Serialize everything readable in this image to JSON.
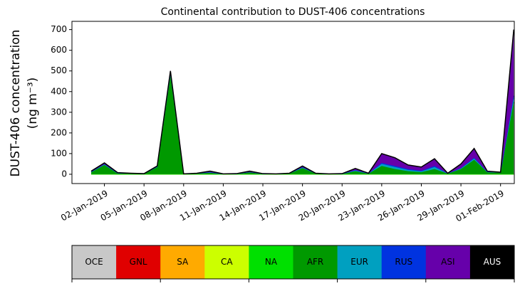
{
  "chart_data": {
    "type": "stacked_area",
    "title": "Continental contribution to DUST-406 concentrations",
    "ylabel": [
      "DUST-406 concentration",
      "(ng m⁻³)"
    ],
    "x": [
      "2019-01-01",
      "2019-01-02",
      "2019-01-03",
      "2019-01-04",
      "2019-01-05",
      "2019-01-06",
      "2019-01-07",
      "2019-01-08",
      "2019-01-09",
      "2019-01-10",
      "2019-01-11",
      "2019-01-12",
      "2019-01-13",
      "2019-01-14",
      "2019-01-15",
      "2019-01-16",
      "2019-01-17",
      "2019-01-18",
      "2019-01-19",
      "2019-01-20",
      "2019-01-21",
      "2019-01-22",
      "2019-01-23",
      "2019-01-24",
      "2019-01-25",
      "2019-01-26",
      "2019-01-27",
      "2019-01-28",
      "2019-01-29",
      "2019-01-30",
      "2019-01-31",
      "2019-02-01",
      "2019-02-02"
    ],
    "xlim": [
      "2018-12-30T13:00:00Z",
      "2019-02-02T01:00:00Z"
    ],
    "xticks": [
      {
        "value": "2019-01-02",
        "label": "02-Jan-2019"
      },
      {
        "value": "2019-01-05",
        "label": "05-Jan-2019"
      },
      {
        "value": "2019-01-08",
        "label": "08-Jan-2019"
      },
      {
        "value": "2019-01-11",
        "label": "11-Jan-2019"
      },
      {
        "value": "2019-01-14",
        "label": "14-Jan-2019"
      },
      {
        "value": "2019-01-17",
        "label": "17-Jan-2019"
      },
      {
        "value": "2019-01-20",
        "label": "20-Jan-2019"
      },
      {
        "value": "2019-01-23",
        "label": "23-Jan-2019"
      },
      {
        "value": "2019-01-26",
        "label": "26-Jan-2019"
      },
      {
        "value": "2019-01-29",
        "label": "29-Jan-2019"
      },
      {
        "value": "2019-02-01",
        "label": "01-Feb-2019"
      }
    ],
    "ylim": [
      -45,
      740
    ],
    "yticks": [
      0,
      100,
      200,
      300,
      400,
      500,
      600,
      700
    ],
    "series": [
      {
        "name": "OCE",
        "color": "#c8c8c8",
        "values": [
          0,
          0,
          0,
          0,
          0,
          0,
          0,
          0,
          0,
          0,
          0,
          0,
          0,
          0,
          0,
          0,
          0,
          0,
          0,
          0,
          0,
          0,
          0,
          0,
          0,
          0,
          0,
          0,
          0,
          0,
          0,
          0,
          0
        ]
      },
      {
        "name": "GNL",
        "color": "#e00000",
        "values": [
          0,
          0,
          0,
          0,
          0,
          0,
          0,
          0,
          0,
          0,
          0,
          0,
          0,
          0,
          0,
          0,
          0,
          0,
          0,
          0,
          0,
          0,
          0,
          0,
          0,
          0,
          0,
          0,
          0,
          0,
          0,
          0,
          0
        ]
      },
      {
        "name": "SA",
        "color": "#ffaa00",
        "values": [
          0,
          0,
          0,
          0,
          0,
          0,
          0,
          0,
          0,
          0,
          0,
          0,
          0,
          0,
          0,
          0,
          0,
          0,
          0,
          0,
          0,
          0,
          0,
          0,
          0,
          0,
          0,
          0,
          0,
          0,
          0,
          0,
          0
        ]
      },
      {
        "name": "CA",
        "color": "#ccff00",
        "values": [
          0,
          0,
          0,
          0,
          0,
          0,
          0,
          0,
          0,
          0,
          0,
          0,
          0,
          0,
          0,
          0,
          0,
          0,
          0,
          0,
          0,
          0,
          0,
          0,
          0,
          0,
          0,
          0,
          0,
          0,
          0,
          0,
          0
        ]
      },
      {
        "name": "NA",
        "color": "#00e000",
        "values": [
          0,
          0,
          0,
          0,
          0,
          0,
          0,
          0,
          0,
          0,
          0,
          0,
          0,
          0,
          0,
          0,
          0,
          0,
          0,
          0,
          0,
          0,
          0,
          0,
          0,
          0,
          0,
          0,
          0,
          0,
          0,
          0,
          0
        ]
      },
      {
        "name": "AFR",
        "color": "#009900",
        "values": [
          10,
          45,
          5,
          4,
          2,
          35,
          480,
          1,
          3,
          8,
          1,
          2,
          10,
          2,
          1,
          3,
          30,
          3,
          1,
          2,
          15,
          3,
          40,
          25,
          15,
          10,
          25,
          3,
          25,
          70,
          10,
          8,
          350
        ]
      },
      {
        "name": "EUR",
        "color": "#00a0c0",
        "values": [
          1,
          2,
          0,
          0,
          0,
          1,
          5,
          0,
          1,
          1,
          0,
          0,
          1,
          0,
          0,
          1,
          2,
          1,
          0,
          0,
          3,
          1,
          10,
          10,
          6,
          4,
          10,
          1,
          3,
          6,
          1,
          1,
          20
        ]
      },
      {
        "name": "RUS",
        "color": "#0033e0",
        "values": [
          1,
          2,
          1,
          0,
          0,
          1,
          5,
          0,
          0,
          1,
          0,
          0,
          0,
          0,
          0,
          0,
          2,
          0,
          0,
          0,
          2,
          0,
          5,
          5,
          4,
          3,
          5,
          0,
          2,
          4,
          1,
          0,
          10
        ]
      },
      {
        "name": "ASI",
        "color": "#6600aa",
        "values": [
          3,
          6,
          2,
          1,
          1,
          3,
          10,
          1,
          1,
          5,
          1,
          1,
          4,
          1,
          1,
          1,
          6,
          1,
          1,
          1,
          8,
          1,
          45,
          40,
          20,
          18,
          35,
          1,
          20,
          45,
          3,
          1,
          320
        ]
      },
      {
        "name": "AUS",
        "color": "#000000",
        "values": [
          0,
          0,
          0,
          0,
          0,
          0,
          0,
          0,
          0,
          0,
          0,
          0,
          0,
          0,
          0,
          0,
          0,
          0,
          0,
          0,
          0,
          0,
          0,
          0,
          0,
          0,
          0,
          0,
          0,
          0,
          0,
          0,
          0
        ]
      }
    ]
  }
}
